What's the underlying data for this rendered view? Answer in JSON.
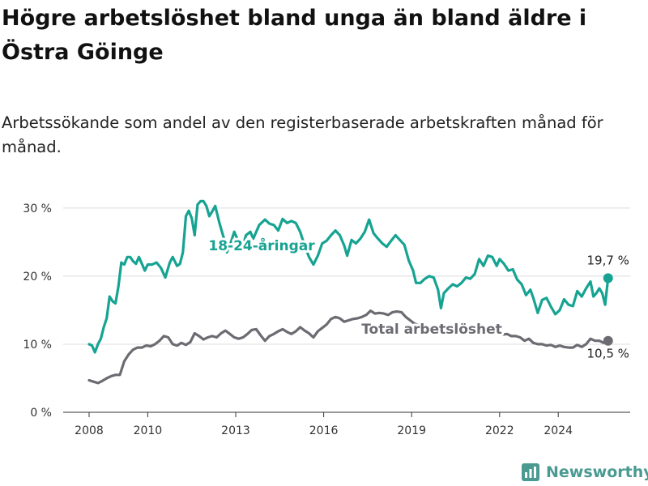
{
  "title": "Högre arbetslöshet bland unga än bland äldre i Östra Göinge",
  "subtitle": "Arbetssökande som andel av den registerbaserade arbetskraften månad för månad.",
  "brand": {
    "name": "Newsworthy",
    "icon": "newsworthy-logo-icon",
    "color": "#4a9a91"
  },
  "chart_data": {
    "type": "line",
    "x_unit": "year",
    "xlim": [
      2007.4,
      2025.6
    ],
    "ylim": [
      0,
      32
    ],
    "y_ticks": [
      0,
      10,
      20,
      30
    ],
    "y_tick_labels": [
      "0 %",
      "10 %",
      "20 %",
      "30 %"
    ],
    "x_ticks": [
      2008,
      2010,
      2013,
      2016,
      2019,
      2022,
      2024
    ],
    "x_tick_labels": [
      "2008",
      "2010",
      "2013",
      "2016",
      "2019",
      "2022",
      "2024"
    ],
    "grid": "horizontal",
    "series": [
      {
        "name": "18-24-åringar",
        "color": "#16a392",
        "end_label": "19,7 %",
        "points": [
          [
            2008.0,
            10.0
          ],
          [
            2008.1,
            9.8
          ],
          [
            2008.2,
            8.8
          ],
          [
            2008.3,
            10.0
          ],
          [
            2008.4,
            10.8
          ],
          [
            2008.5,
            12.5
          ],
          [
            2008.6,
            13.8
          ],
          [
            2008.7,
            17.0
          ],
          [
            2008.8,
            16.3
          ],
          [
            2008.9,
            16.0
          ],
          [
            2009.0,
            18.5
          ],
          [
            2009.1,
            22.0
          ],
          [
            2009.2,
            21.7
          ],
          [
            2009.3,
            22.8
          ],
          [
            2009.4,
            22.8
          ],
          [
            2009.5,
            22.2
          ],
          [
            2009.6,
            21.8
          ],
          [
            2009.7,
            22.8
          ],
          [
            2009.8,
            21.8
          ],
          [
            2009.9,
            20.8
          ],
          [
            2010.0,
            21.7
          ],
          [
            2010.15,
            21.7
          ],
          [
            2010.3,
            22.0
          ],
          [
            2010.45,
            21.2
          ],
          [
            2010.6,
            19.8
          ],
          [
            2010.75,
            22.0
          ],
          [
            2010.85,
            22.8
          ],
          [
            2011.0,
            21.5
          ],
          [
            2011.1,
            21.8
          ],
          [
            2011.2,
            23.5
          ],
          [
            2011.3,
            28.8
          ],
          [
            2011.4,
            29.6
          ],
          [
            2011.5,
            28.5
          ],
          [
            2011.6,
            26.0
          ],
          [
            2011.7,
            30.5
          ],
          [
            2011.8,
            31.0
          ],
          [
            2011.9,
            31.0
          ],
          [
            2012.0,
            30.3
          ],
          [
            2012.1,
            28.8
          ],
          [
            2012.2,
            29.5
          ],
          [
            2012.3,
            30.3
          ],
          [
            2012.45,
            27.7
          ],
          [
            2012.6,
            25.5
          ],
          [
            2012.7,
            23.5
          ],
          [
            2012.8,
            24.5
          ],
          [
            2012.95,
            26.5
          ],
          [
            2013.1,
            25.0
          ],
          [
            2013.2,
            23.8
          ],
          [
            2013.35,
            26.0
          ],
          [
            2013.5,
            26.5
          ],
          [
            2013.6,
            25.5
          ],
          [
            2013.7,
            26.5
          ],
          [
            2013.8,
            27.5
          ],
          [
            2014.0,
            28.3
          ],
          [
            2014.15,
            27.7
          ],
          [
            2014.3,
            27.5
          ],
          [
            2014.45,
            26.7
          ],
          [
            2014.6,
            28.4
          ],
          [
            2014.75,
            27.8
          ],
          [
            2014.9,
            28.1
          ],
          [
            2015.05,
            27.8
          ],
          [
            2015.2,
            26.5
          ],
          [
            2015.35,
            24.5
          ],
          [
            2015.5,
            22.8
          ],
          [
            2015.65,
            21.7
          ],
          [
            2015.8,
            23.0
          ],
          [
            2015.95,
            24.8
          ],
          [
            2016.1,
            25.2
          ],
          [
            2016.25,
            26.0
          ],
          [
            2016.4,
            26.7
          ],
          [
            2016.55,
            26.0
          ],
          [
            2016.7,
            24.5
          ],
          [
            2016.8,
            23.0
          ],
          [
            2016.95,
            25.3
          ],
          [
            2017.1,
            24.8
          ],
          [
            2017.25,
            25.5
          ],
          [
            2017.4,
            26.5
          ],
          [
            2017.55,
            28.3
          ],
          [
            2017.7,
            26.3
          ],
          [
            2017.85,
            25.5
          ],
          [
            2018.0,
            24.8
          ],
          [
            2018.15,
            24.3
          ],
          [
            2018.3,
            25.2
          ],
          [
            2018.45,
            26.0
          ],
          [
            2018.6,
            25.3
          ],
          [
            2018.75,
            24.6
          ],
          [
            2018.9,
            22.3
          ],
          [
            2019.05,
            20.8
          ],
          [
            2019.15,
            19.0
          ],
          [
            2019.3,
            19.0
          ],
          [
            2019.45,
            19.6
          ],
          [
            2019.6,
            20.0
          ],
          [
            2019.75,
            19.8
          ],
          [
            2019.9,
            18.0
          ],
          [
            2020.0,
            15.3
          ],
          [
            2020.1,
            17.5
          ],
          [
            2020.25,
            18.2
          ],
          [
            2020.4,
            18.8
          ],
          [
            2020.55,
            18.5
          ],
          [
            2020.7,
            19.0
          ],
          [
            2020.85,
            19.8
          ],
          [
            2021.0,
            19.6
          ],
          [
            2021.15,
            20.3
          ],
          [
            2021.3,
            22.5
          ],
          [
            2021.45,
            21.5
          ],
          [
            2021.6,
            23.0
          ],
          [
            2021.75,
            22.8
          ],
          [
            2021.9,
            21.5
          ],
          [
            2022.0,
            22.5
          ],
          [
            2022.15,
            21.8
          ],
          [
            2022.3,
            20.8
          ],
          [
            2022.45,
            21.0
          ],
          [
            2022.6,
            19.5
          ],
          [
            2022.75,
            18.8
          ],
          [
            2022.9,
            17.2
          ],
          [
            2023.05,
            18.0
          ],
          [
            2023.15,
            16.8
          ],
          [
            2023.3,
            14.6
          ],
          [
            2023.45,
            16.5
          ],
          [
            2023.6,
            16.8
          ],
          [
            2023.75,
            15.5
          ],
          [
            2023.9,
            14.4
          ],
          [
            2024.05,
            15.0
          ],
          [
            2024.2,
            16.6
          ],
          [
            2024.35,
            15.8
          ],
          [
            2024.5,
            15.6
          ],
          [
            2024.65,
            17.8
          ],
          [
            2024.8,
            17.0
          ],
          [
            2024.95,
            18.2
          ],
          [
            2025.1,
            19.2
          ],
          [
            2025.2,
            17.0
          ],
          [
            2025.3,
            17.5
          ],
          [
            2025.4,
            18.2
          ],
          [
            2025.5,
            17.5
          ],
          [
            2025.6,
            15.8
          ],
          [
            2025.7,
            19.7
          ]
        ]
      },
      {
        "name": "Total arbetslöshet",
        "color": "#6b6b72",
        "end_label": "10,5 %",
        "points": [
          [
            2008.0,
            4.7
          ],
          [
            2008.15,
            4.5
          ],
          [
            2008.3,
            4.3
          ],
          [
            2008.45,
            4.6
          ],
          [
            2008.6,
            5.0
          ],
          [
            2008.75,
            5.3
          ],
          [
            2008.9,
            5.5
          ],
          [
            2009.05,
            5.5
          ],
          [
            2009.2,
            7.5
          ],
          [
            2009.35,
            8.5
          ],
          [
            2009.5,
            9.2
          ],
          [
            2009.65,
            9.5
          ],
          [
            2009.8,
            9.5
          ],
          [
            2009.95,
            9.8
          ],
          [
            2010.1,
            9.7
          ],
          [
            2010.25,
            10.0
          ],
          [
            2010.4,
            10.5
          ],
          [
            2010.55,
            11.2
          ],
          [
            2010.7,
            11.0
          ],
          [
            2010.85,
            10.0
          ],
          [
            2011.0,
            9.8
          ],
          [
            2011.15,
            10.2
          ],
          [
            2011.3,
            9.9
          ],
          [
            2011.45,
            10.3
          ],
          [
            2011.6,
            11.6
          ],
          [
            2011.75,
            11.2
          ],
          [
            2011.9,
            10.7
          ],
          [
            2012.05,
            11.0
          ],
          [
            2012.2,
            11.2
          ],
          [
            2012.35,
            11.0
          ],
          [
            2012.5,
            11.6
          ],
          [
            2012.65,
            12.0
          ],
          [
            2012.8,
            11.5
          ],
          [
            2012.95,
            11.0
          ],
          [
            2013.1,
            10.8
          ],
          [
            2013.25,
            11.0
          ],
          [
            2013.4,
            11.5
          ],
          [
            2013.55,
            12.1
          ],
          [
            2013.7,
            12.2
          ],
          [
            2013.85,
            11.3
          ],
          [
            2014.0,
            10.5
          ],
          [
            2014.15,
            11.2
          ],
          [
            2014.3,
            11.5
          ],
          [
            2014.45,
            11.9
          ],
          [
            2014.6,
            12.2
          ],
          [
            2014.75,
            11.8
          ],
          [
            2014.9,
            11.5
          ],
          [
            2015.05,
            11.9
          ],
          [
            2015.2,
            12.5
          ],
          [
            2015.35,
            12.0
          ],
          [
            2015.5,
            11.6
          ],
          [
            2015.65,
            11.0
          ],
          [
            2015.8,
            11.9
          ],
          [
            2015.95,
            12.4
          ],
          [
            2016.1,
            12.9
          ],
          [
            2016.25,
            13.7
          ],
          [
            2016.4,
            14.0
          ],
          [
            2016.55,
            13.8
          ],
          [
            2016.7,
            13.3
          ],
          [
            2016.85,
            13.5
          ],
          [
            2017.0,
            13.7
          ],
          [
            2017.15,
            13.8
          ],
          [
            2017.3,
            14.0
          ],
          [
            2017.45,
            14.3
          ],
          [
            2017.6,
            14.9
          ],
          [
            2017.75,
            14.5
          ],
          [
            2017.9,
            14.6
          ],
          [
            2018.05,
            14.5
          ],
          [
            2018.2,
            14.3
          ],
          [
            2018.35,
            14.7
          ],
          [
            2018.5,
            14.8
          ],
          [
            2018.65,
            14.7
          ],
          [
            2018.8,
            14.0
          ],
          [
            2018.95,
            13.5
          ],
          [
            2019.1,
            13.0
          ],
          [
            2019.25,
            12.8
          ],
          [
            2019.4,
            12.6
          ],
          [
            2019.55,
            12.5
          ],
          [
            2019.7,
            12.4
          ],
          [
            2019.85,
            12.3
          ],
          [
            2020.0,
            12.2
          ],
          [
            2020.15,
            12.2
          ],
          [
            2020.3,
            12.1
          ],
          [
            2020.45,
            12.0
          ],
          [
            2020.6,
            12.0
          ],
          [
            2020.75,
            11.9
          ],
          [
            2020.9,
            11.9
          ],
          [
            2021.05,
            11.8
          ],
          [
            2021.2,
            11.8
          ],
          [
            2021.35,
            11.7
          ],
          [
            2021.5,
            11.7
          ],
          [
            2021.65,
            11.6
          ],
          [
            2021.8,
            11.5
          ],
          [
            2021.95,
            11.6
          ],
          [
            2022.1,
            11.4
          ],
          [
            2022.25,
            11.5
          ],
          [
            2022.4,
            11.2
          ],
          [
            2022.55,
            11.2
          ],
          [
            2022.7,
            11.0
          ],
          [
            2022.85,
            10.5
          ],
          [
            2023.0,
            10.8
          ],
          [
            2023.15,
            10.2
          ],
          [
            2023.3,
            10.0
          ],
          [
            2023.45,
            10.0
          ],
          [
            2023.6,
            9.8
          ],
          [
            2023.75,
            9.9
          ],
          [
            2023.9,
            9.6
          ],
          [
            2024.05,
            9.8
          ],
          [
            2024.2,
            9.6
          ],
          [
            2024.35,
            9.5
          ],
          [
            2024.5,
            9.5
          ],
          [
            2024.65,
            9.9
          ],
          [
            2024.8,
            9.6
          ],
          [
            2024.95,
            10.0
          ],
          [
            2025.1,
            10.8
          ],
          [
            2025.25,
            10.5
          ],
          [
            2025.4,
            10.5
          ],
          [
            2025.55,
            10.2
          ],
          [
            2025.7,
            10.5
          ]
        ]
      }
    ]
  }
}
